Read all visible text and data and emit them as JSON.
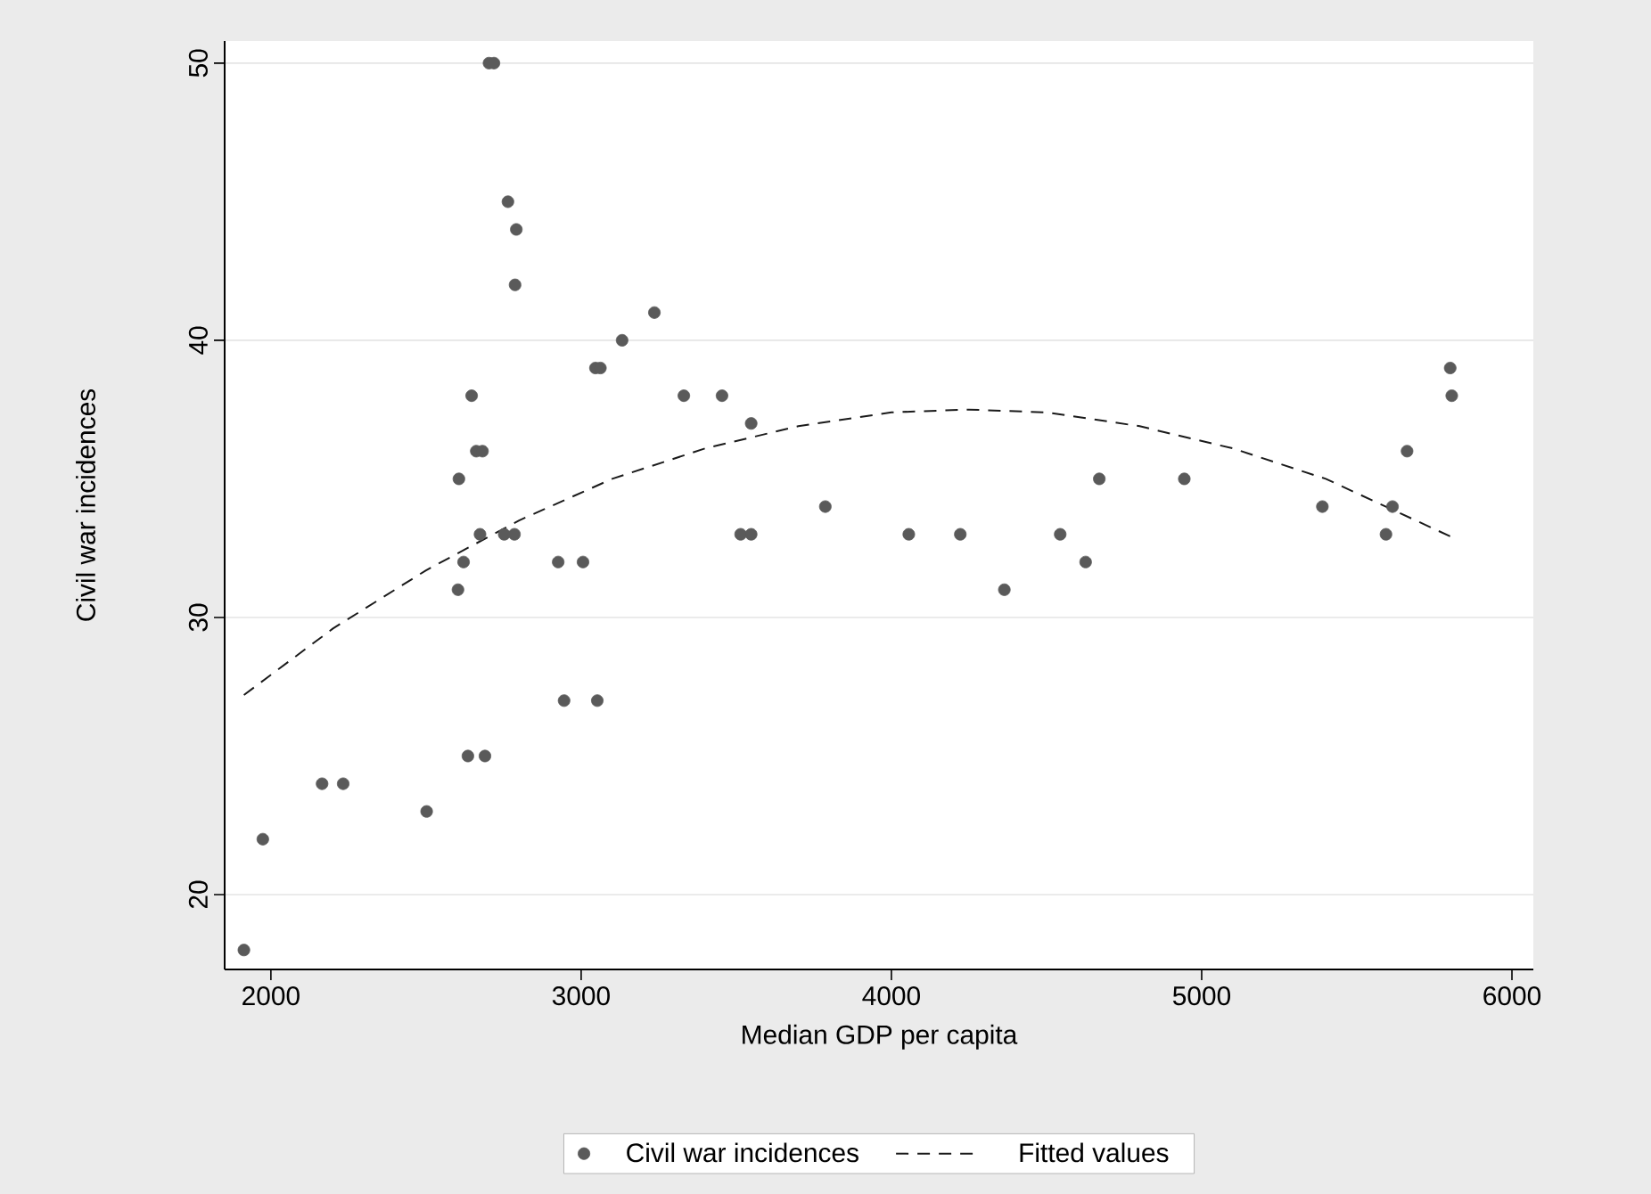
{
  "chart_data": {
    "type": "scatter",
    "xlabel": "Median GDP per capita",
    "ylabel": "Civil war incidences",
    "xlim": [
      1851,
      6069
    ],
    "ylim": [
      17.3,
      50.8
    ],
    "xticks": [
      2000,
      3000,
      4000,
      5000,
      6000
    ],
    "yticks": [
      20,
      30,
      40,
      50
    ],
    "grid": "y",
    "legend": "bottom",
    "series": [
      {
        "name": "Civil war incidences",
        "color": "#5a5a5a",
        "marker": "circle",
        "x": [
          1913,
          1974,
          2165,
          2233,
          2502,
          2606,
          2621,
          2603,
          2647,
          2635,
          2690,
          2662,
          2682,
          2674,
          2703,
          2719,
          2752,
          2785,
          2764,
          2791,
          2787,
          2926,
          3006,
          2945,
          3052,
          3046,
          3062,
          3132,
          3236,
          3331,
          3454,
          3548,
          3514,
          3548,
          3787,
          4056,
          4222,
          4364,
          4544,
          4626,
          4670,
          4944,
          5389,
          5594,
          5615,
          5662,
          5801,
          5806
        ],
        "values": [
          18,
          22,
          24,
          24,
          23,
          35,
          32,
          31,
          38,
          25,
          25,
          36,
          36,
          33,
          50,
          50,
          33,
          33,
          45,
          44,
          42,
          32,
          32,
          27,
          27,
          39,
          39,
          40,
          41,
          38,
          38,
          37,
          33,
          33,
          34,
          33,
          33,
          31,
          33,
          32,
          35,
          35,
          34,
          33,
          34,
          36,
          39,
          38
        ]
      },
      {
        "name": "Fitted values",
        "type": "line",
        "color": "#1a1a1a",
        "line_style": "dashed",
        "marker": "none",
        "x": [
          1913,
          2200,
          2500,
          2800,
          3100,
          3400,
          3700,
          4000,
          4250,
          4500,
          4800,
          5100,
          5400,
          5806
        ],
        "values": [
          27.2,
          29.6,
          31.7,
          33.5,
          35.0,
          36.1,
          36.9,
          37.4,
          37.5,
          37.4,
          36.9,
          36.1,
          35.0,
          32.9
        ]
      }
    ]
  }
}
